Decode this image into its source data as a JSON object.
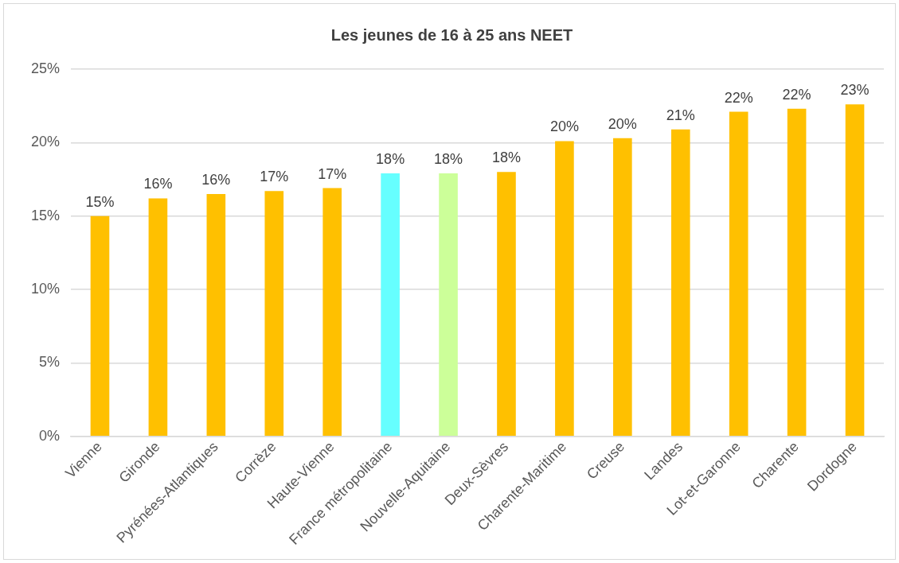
{
  "chart_data": {
    "type": "bar",
    "title": "Les jeunes de 16 à 25 ans NEET",
    "categories": [
      "Vienne",
      "Gironde",
      "Pyrénées-Atlantiques",
      "Corrèze",
      "Haute-Vienne",
      "France métropolitaine",
      "Nouvelle-Aquitaine",
      "Deux-Sèvres",
      "Charente-Maritime",
      "Creuse",
      "Landes",
      "Lot-et-Garonne",
      "Charente",
      "Dordogne"
    ],
    "values": [
      15.0,
      16.2,
      16.5,
      16.7,
      16.9,
      17.9,
      17.9,
      18.0,
      20.1,
      20.3,
      20.9,
      22.1,
      22.3,
      22.6
    ],
    "value_labels": [
      "15%",
      "16%",
      "16%",
      "17%",
      "17%",
      "18%",
      "18%",
      "18%",
      "20%",
      "20%",
      "21%",
      "22%",
      "22%",
      "23%"
    ],
    "colors": [
      "#ffc000",
      "#ffc000",
      "#ffc000",
      "#ffc000",
      "#ffc000",
      "#66ffff",
      "#ccff99",
      "#ffc000",
      "#ffc000",
      "#ffc000",
      "#ffc000",
      "#ffc000",
      "#ffc000",
      "#ffc000"
    ],
    "ylim": [
      0,
      25
    ],
    "yticks": [
      {
        "value": 0,
        "label": "0%"
      },
      {
        "value": 5,
        "label": "5%"
      },
      {
        "value": 10,
        "label": "10%"
      },
      {
        "value": 15,
        "label": "15%"
      },
      {
        "value": 20,
        "label": "20%"
      },
      {
        "value": 25,
        "label": "25%"
      }
    ],
    "grid": "y",
    "legend": false
  }
}
